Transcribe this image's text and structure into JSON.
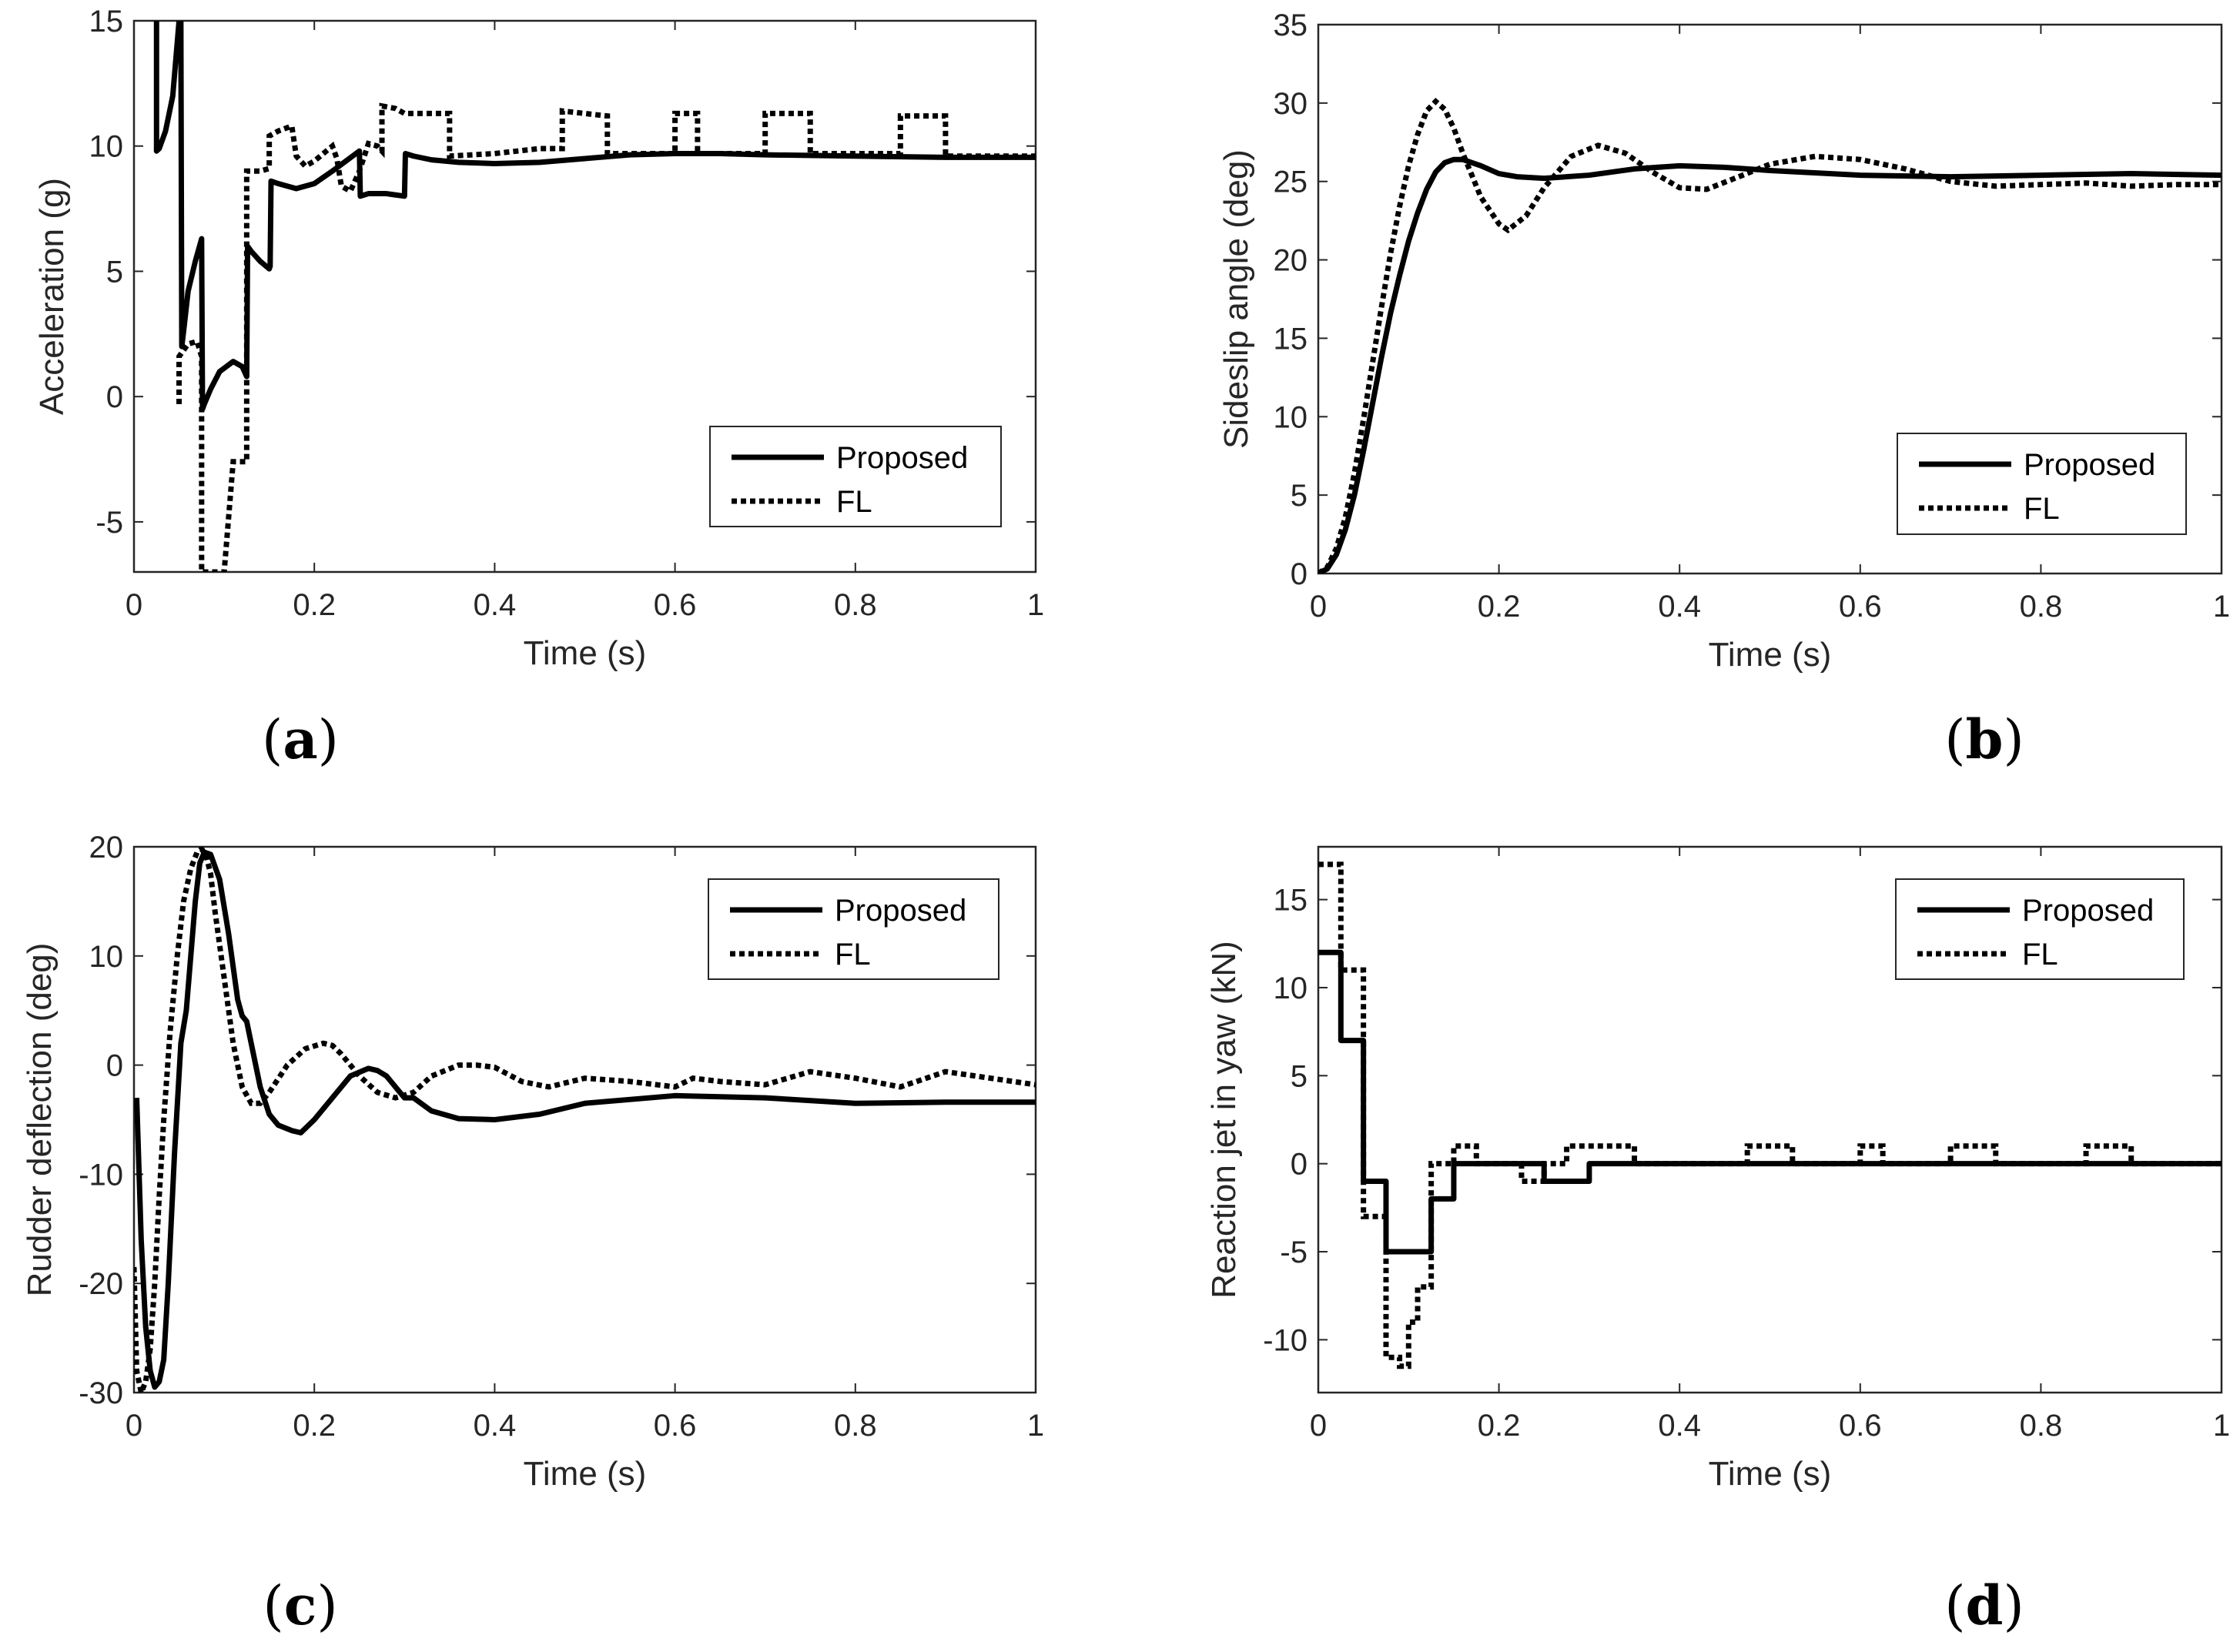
{
  "chart_data": [
    {
      "type": "line",
      "panel_label": "(a)",
      "panel_letter": "a",
      "xlabel": "Time (s)",
      "ylabel": "Acceleration (g)",
      "xlim": [
        0,
        1
      ],
      "ylim": [
        -7,
        15
      ],
      "xticks": [
        0,
        0.2,
        0.4,
        0.6,
        0.8,
        1
      ],
      "xtick_labels": [
        "0",
        "0.2",
        "0.4",
        "0.6",
        "0.8",
        "1"
      ],
      "yticks": [
        -5,
        0,
        5,
        10,
        15
      ],
      "ytick_labels": [
        "-5",
        "0",
        "5",
        "10",
        "15"
      ],
      "legend_position": "lower-right",
      "series": [
        {
          "name": "Proposed",
          "style": "solid",
          "x": [
            0.025,
            0.025,
            0.028,
            0.035,
            0.043,
            0.05,
            0.052,
            0.053,
            0.055,
            0.06,
            0.068,
            0.075,
            0.076,
            0.078,
            0.085,
            0.095,
            0.11,
            0.12,
            0.125,
            0.126,
            0.13,
            0.14,
            0.15,
            0.151,
            0.152,
            0.16,
            0.18,
            0.2,
            0.22,
            0.25,
            0.251,
            0.26,
            0.28,
            0.3,
            0.301,
            0.31,
            0.33,
            0.36,
            0.4,
            0.45,
            0.5,
            0.55,
            0.6,
            0.65,
            0.7,
            0.8,
            0.9,
            1.0
          ],
          "y": [
            15,
            9.8,
            9.9,
            10.6,
            12.0,
            15.0,
            15.0,
            2.0,
            2.6,
            4.2,
            5.4,
            6.3,
            -0.5,
            -0.3,
            0.3,
            1.0,
            1.4,
            1.2,
            0.8,
            6.0,
            5.8,
            5.4,
            5.1,
            5.2,
            8.6,
            8.5,
            8.3,
            8.5,
            9.0,
            9.8,
            8.0,
            8.1,
            8.1,
            8.0,
            9.7,
            9.6,
            9.45,
            9.35,
            9.3,
            9.35,
            9.5,
            9.65,
            9.7,
            9.7,
            9.65,
            9.6,
            9.55,
            9.55
          ]
        },
        {
          "name": "FL",
          "style": "dotted",
          "x": [
            0.05,
            0.05,
            0.06,
            0.07,
            0.075,
            0.075,
            0.08,
            0.085,
            0.09,
            0.1,
            0.11,
            0.115,
            0.12,
            0.125,
            0.125,
            0.13,
            0.14,
            0.15,
            0.15,
            0.16,
            0.175,
            0.18,
            0.19,
            0.2,
            0.22,
            0.225,
            0.23,
            0.24,
            0.25,
            0.26,
            0.27,
            0.275,
            0.275,
            0.29,
            0.3,
            0.35,
            0.35,
            0.4,
            0.45,
            0.475,
            0.475,
            0.525,
            0.525,
            0.6,
            0.6,
            0.625,
            0.625,
            0.7,
            0.7,
            0.75,
            0.75,
            0.85,
            0.85,
            0.9,
            0.9,
            1.0
          ],
          "y": [
            -0.3,
            1.6,
            2.1,
            2.2,
            1.6,
            -7.0,
            -7.0,
            -7.0,
            -7.0,
            -7.0,
            -2.6,
            -2.6,
            -2.6,
            -2.6,
            9.0,
            9.0,
            9.0,
            9.1,
            10.4,
            10.6,
            10.8,
            9.6,
            9.2,
            9.4,
            10.0,
            9.5,
            8.4,
            8.2,
            9.0,
            10.1,
            10.0,
            9.8,
            11.6,
            11.5,
            11.3,
            11.3,
            9.6,
            9.7,
            9.9,
            9.9,
            11.4,
            11.2,
            9.7,
            9.7,
            11.3,
            11.3,
            9.7,
            9.7,
            11.3,
            11.3,
            9.7,
            9.7,
            11.2,
            11.2,
            9.6,
            9.6
          ]
        }
      ]
    },
    {
      "type": "line",
      "panel_label": "(b)",
      "panel_letter": "b",
      "xlabel": "Time (s)",
      "ylabel": "Sideslip angle (deg)",
      "xlim": [
        0,
        1
      ],
      "ylim": [
        0,
        35
      ],
      "xticks": [
        0,
        0.2,
        0.4,
        0.6,
        0.8,
        1
      ],
      "xtick_labels": [
        "0",
        "0.2",
        "0.4",
        "0.6",
        "0.8",
        "1"
      ],
      "yticks": [
        0,
        5,
        10,
        15,
        20,
        25,
        30,
        35
      ],
      "ytick_labels": [
        "0",
        "5",
        "10",
        "15",
        "20",
        "25",
        "30",
        "35"
      ],
      "legend_position": "lower-right",
      "series": [
        {
          "name": "Proposed",
          "style": "solid",
          "x": [
            0,
            0.01,
            0.02,
            0.03,
            0.04,
            0.05,
            0.06,
            0.07,
            0.08,
            0.09,
            0.1,
            0.11,
            0.12,
            0.13,
            0.14,
            0.15,
            0.16,
            0.18,
            0.2,
            0.22,
            0.25,
            0.3,
            0.35,
            0.4,
            0.45,
            0.5,
            0.6,
            0.7,
            0.8,
            0.9,
            1.0
          ],
          "y": [
            0,
            0.3,
            1.2,
            2.8,
            5.0,
            7.8,
            10.8,
            13.8,
            16.6,
            19.0,
            21.2,
            23.0,
            24.5,
            25.6,
            26.2,
            26.4,
            26.4,
            26.0,
            25.5,
            25.3,
            25.2,
            25.4,
            25.8,
            26.0,
            25.9,
            25.7,
            25.4,
            25.3,
            25.4,
            25.5,
            25.4
          ]
        },
        {
          "name": "FL",
          "style": "dotted",
          "x": [
            0,
            0.01,
            0.02,
            0.03,
            0.04,
            0.05,
            0.06,
            0.07,
            0.08,
            0.09,
            0.1,
            0.11,
            0.12,
            0.13,
            0.14,
            0.15,
            0.16,
            0.18,
            0.2,
            0.21,
            0.23,
            0.25,
            0.28,
            0.31,
            0.34,
            0.37,
            0.4,
            0.43,
            0.47,
            0.5,
            0.55,
            0.6,
            0.65,
            0.7,
            0.75,
            0.8,
            0.85,
            0.9,
            0.95,
            1.0
          ],
          "y": [
            0,
            0.4,
            1.6,
            3.6,
            6.4,
            9.8,
            13.4,
            17.0,
            20.4,
            23.4,
            26.0,
            28.0,
            29.5,
            30.1,
            29.6,
            28.4,
            26.8,
            24.0,
            22.3,
            21.9,
            22.8,
            24.6,
            26.6,
            27.3,
            26.8,
            25.6,
            24.6,
            24.5,
            25.4,
            26.1,
            26.6,
            26.4,
            25.8,
            25.0,
            24.7,
            24.8,
            24.9,
            24.7,
            24.8,
            24.8
          ]
        }
      ]
    },
    {
      "type": "line",
      "panel_label": "(c)",
      "panel_letter": "c",
      "xlabel": "Time (s)",
      "ylabel": "Rudder deflection (deg)",
      "xlim": [
        0,
        1
      ],
      "ylim": [
        -30,
        20
      ],
      "xticks": [
        0,
        0.2,
        0.4,
        0.6,
        0.8,
        1
      ],
      "xtick_labels": [
        "0",
        "0.2",
        "0.4",
        "0.6",
        "0.8",
        "1"
      ],
      "yticks": [
        -30,
        -20,
        -10,
        0,
        10,
        20
      ],
      "ytick_labels": [
        "-30",
        "-20",
        "-10",
        "0",
        "10",
        "20"
      ],
      "legend_position": "upper-right",
      "series": [
        {
          "name": "Proposed",
          "style": "solid",
          "x": [
            0.003,
            0.008,
            0.013,
            0.018,
            0.023,
            0.028,
            0.033,
            0.038,
            0.045,
            0.052,
            0.058,
            0.063,
            0.068,
            0.073,
            0.078,
            0.085,
            0.095,
            0.105,
            0.115,
            0.12,
            0.125,
            0.13,
            0.14,
            0.15,
            0.16,
            0.175,
            0.185,
            0.2,
            0.22,
            0.24,
            0.26,
            0.27,
            0.28,
            0.29,
            0.3,
            0.31,
            0.33,
            0.36,
            0.4,
            0.45,
            0.5,
            0.6,
            0.7,
            0.8,
            0.9,
            1.0
          ],
          "y": [
            -3,
            -16,
            -24,
            -28,
            -29.5,
            -29.0,
            -27.0,
            -20.0,
            -8.0,
            2.0,
            5.0,
            10.0,
            15.0,
            18.5,
            19.5,
            19.3,
            17.0,
            12.0,
            6.0,
            4.5,
            4.0,
            2.0,
            -2.0,
            -4.5,
            -5.5,
            -6.0,
            -6.2,
            -5.0,
            -3.0,
            -1.0,
            -0.3,
            -0.5,
            -1.0,
            -2.0,
            -3.0,
            -3.0,
            -4.2,
            -4.9,
            -5.0,
            -4.5,
            -3.5,
            -2.8,
            -3.0,
            -3.5,
            -3.4,
            -3.4
          ]
        },
        {
          "name": "FL",
          "style": "dotted",
          "x": [
            0.0,
            0.003,
            0.008,
            0.013,
            0.018,
            0.023,
            0.028,
            0.033,
            0.04,
            0.048,
            0.055,
            0.063,
            0.07,
            0.075,
            0.08,
            0.085,
            0.09,
            0.1,
            0.11,
            0.12,
            0.13,
            0.14,
            0.15,
            0.17,
            0.19,
            0.21,
            0.22,
            0.23,
            0.25,
            0.27,
            0.29,
            0.31,
            0.33,
            0.36,
            0.38,
            0.4,
            0.43,
            0.46,
            0.5,
            0.55,
            0.6,
            0.62,
            0.65,
            0.7,
            0.75,
            0.8,
            0.85,
            0.9,
            0.95,
            1.0
          ],
          "y": [
            -18.5,
            -28.0,
            -30.0,
            -29.0,
            -26.0,
            -20.0,
            -12.0,
            -5.0,
            3.0,
            10.0,
            15.0,
            18.0,
            19.5,
            19.8,
            19.2,
            17.5,
            14.0,
            8.0,
            2.0,
            -2.0,
            -3.5,
            -3.5,
            -2.5,
            0.0,
            1.5,
            2.0,
            1.8,
            1.0,
            -1.0,
            -2.5,
            -3.0,
            -2.5,
            -1.0,
            0.0,
            0.0,
            -0.2,
            -1.5,
            -2.0,
            -1.2,
            -1.5,
            -2.0,
            -1.2,
            -1.5,
            -1.8,
            -0.6,
            -1.2,
            -2.0,
            -0.6,
            -1.2,
            -1.8
          ]
        }
      ]
    },
    {
      "type": "line",
      "panel_label": "(d)",
      "panel_letter": "d",
      "xlabel": "Time (s)",
      "ylabel": "Reaction jet in yaw (kN)",
      "xlim": [
        0,
        1
      ],
      "ylim": [
        -13,
        18
      ],
      "xticks": [
        0,
        0.2,
        0.4,
        0.6,
        0.8,
        1
      ],
      "xtick_labels": [
        "0",
        "0.2",
        "0.4",
        "0.6",
        "0.8",
        "1"
      ],
      "yticks": [
        -10,
        -5,
        0,
        5,
        10,
        15
      ],
      "ytick_labels": [
        "-10",
        "-5",
        "0",
        "5",
        "10",
        "15"
      ],
      "legend_position": "upper-right",
      "series": [
        {
          "name": "Proposed",
          "style": "solid",
          "x": [
            0,
            0.025,
            0.025,
            0.05,
            0.05,
            0.075,
            0.075,
            0.125,
            0.125,
            0.15,
            0.15,
            0.25,
            0.25,
            0.3,
            0.3,
            1.0
          ],
          "y": [
            12,
            12,
            7,
            7,
            -1,
            -1,
            -5,
            -5,
            -2,
            -2,
            0,
            0,
            -1,
            -1,
            0,
            0
          ]
        },
        {
          "name": "FL",
          "style": "dotted",
          "x": [
            0,
            0.025,
            0.025,
            0.05,
            0.05,
            0.075,
            0.075,
            0.09,
            0.09,
            0.1,
            0.1,
            0.11,
            0.11,
            0.125,
            0.125,
            0.15,
            0.15,
            0.175,
            0.175,
            0.225,
            0.225,
            0.25,
            0.25,
            0.275,
            0.275,
            0.35,
            0.35,
            0.475,
            0.475,
            0.525,
            0.525,
            0.6,
            0.6,
            0.625,
            0.625,
            0.7,
            0.7,
            0.75,
            0.75,
            0.85,
            0.85,
            0.9,
            0.9,
            1.0
          ],
          "y": [
            17,
            17,
            11,
            11,
            -3,
            -3,
            -11,
            -11,
            -11.5,
            -11.5,
            -9,
            -9,
            -7,
            -7,
            0,
            0,
            1,
            1,
            0,
            0,
            -1,
            -1,
            0,
            0,
            1,
            1,
            0,
            0,
            1,
            1,
            0,
            0,
            1,
            1,
            0,
            0,
            1,
            1,
            0,
            0,
            1,
            1,
            0,
            0
          ]
        }
      ]
    }
  ]
}
